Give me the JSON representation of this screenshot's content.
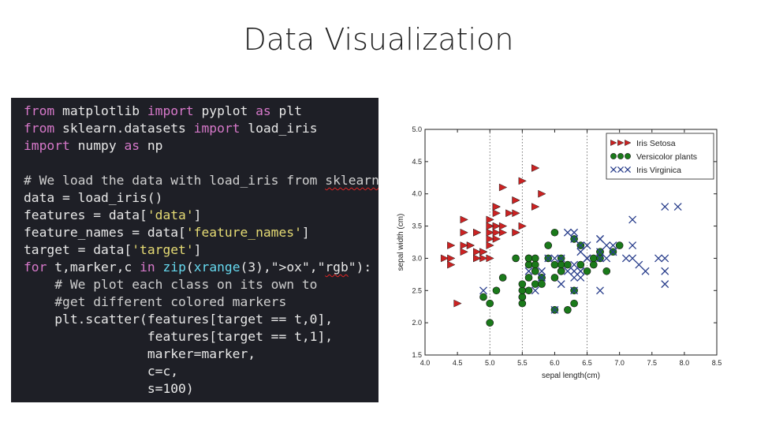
{
  "slide": {
    "title": "Data Visualization"
  },
  "code": {
    "lines": [
      [
        {
          "t": "from",
          "c": "kw"
        },
        {
          "t": " matplotlib "
        },
        {
          "t": "import",
          "c": "kw"
        },
        {
          "t": " pyplot "
        },
        {
          "t": "as",
          "c": "kw"
        },
        {
          "t": " plt"
        }
      ],
      [
        {
          "t": "from",
          "c": "kw"
        },
        {
          "t": " sklearn.datasets "
        },
        {
          "t": "import",
          "c": "kw"
        },
        {
          "t": " load_iris"
        }
      ],
      [
        {
          "t": "import",
          "c": "kw"
        },
        {
          "t": " numpy "
        },
        {
          "t": "as",
          "c": "kw"
        },
        {
          "t": " np"
        }
      ],
      [],
      [
        {
          "t": "# We load the data with load_iris from ",
          "c": "com"
        },
        {
          "t": "sklearn",
          "c": "com sq"
        }
      ],
      [
        {
          "t": "data = load_iris()"
        }
      ],
      [
        {
          "t": "features = data["
        },
        {
          "t": "'data'",
          "c": "str"
        },
        {
          "t": "]"
        }
      ],
      [
        {
          "t": "feature_names = data["
        },
        {
          "t": "'feature_names'",
          "c": "str"
        },
        {
          "t": "]"
        }
      ],
      [
        {
          "t": "target = data["
        },
        {
          "t": "'target'",
          "c": "str"
        },
        {
          "t": "]"
        }
      ],
      [
        {
          "t": "for",
          "c": "kw"
        },
        {
          "t": " t,marker,c "
        },
        {
          "t": "in",
          "c": "kw"
        },
        {
          "t": " "
        },
        {
          "t": "zip",
          "c": "fn"
        },
        {
          "t": "("
        },
        {
          "t": "xrange",
          "c": "fn"
        },
        {
          "t": "(3),\">ox\",\""
        },
        {
          "t": "rgb",
          "c": "sq"
        },
        {
          "t": "\"):"
        }
      ],
      [
        {
          "t": "    # We plot each class on its own to",
          "c": "com"
        }
      ],
      [
        {
          "t": "    #get different colored markers",
          "c": "com"
        }
      ],
      [
        {
          "t": "    plt.scatter(features[target == t,0],"
        }
      ],
      [
        {
          "t": "                features[target == t,1],"
        }
      ],
      [
        {
          "t": "                marker=marker,"
        }
      ],
      [
        {
          "t": "                c=c,"
        }
      ],
      [
        {
          "t": "                s=100)"
        }
      ]
    ]
  },
  "chart_data": {
    "type": "scatter",
    "xlabel": "sepal length(cm)",
    "ylabel": "sepal width (cm)",
    "xlim": [
      4.0,
      8.5
    ],
    "ylim": [
      1.5,
      5.0
    ],
    "xticks": [
      "4.0",
      "4.5",
      "5.0",
      "5.5",
      "6.0",
      "6.5",
      "7.0",
      "7.5",
      "8.0",
      "8.5"
    ],
    "yticks": [
      "1.5",
      "2.0",
      "2.5",
      "3.0",
      "3.5",
      "4.0",
      "4.5",
      "5.0"
    ],
    "grid": "vertical dotted",
    "legend_position": "top-right",
    "series": [
      {
        "name": "Iris Setosa",
        "marker": "triangle-right",
        "color": "#cc2222",
        "points": [
          [
            5.1,
            3.5
          ],
          [
            4.9,
            3.0
          ],
          [
            4.7,
            3.2
          ],
          [
            4.6,
            3.1
          ],
          [
            5.0,
            3.6
          ],
          [
            5.4,
            3.9
          ],
          [
            4.6,
            3.4
          ],
          [
            5.0,
            3.4
          ],
          [
            4.4,
            2.9
          ],
          [
            4.9,
            3.1
          ],
          [
            5.4,
            3.7
          ],
          [
            4.8,
            3.4
          ],
          [
            4.8,
            3.0
          ],
          [
            4.3,
            3.0
          ],
          [
            5.8,
            4.0
          ],
          [
            5.7,
            4.4
          ],
          [
            5.4,
            3.9
          ],
          [
            5.1,
            3.5
          ],
          [
            5.7,
            3.8
          ],
          [
            5.1,
            3.8
          ],
          [
            5.4,
            3.4
          ],
          [
            5.1,
            3.7
          ],
          [
            4.6,
            3.6
          ],
          [
            5.1,
            3.3
          ],
          [
            4.8,
            3.4
          ],
          [
            5.0,
            3.0
          ],
          [
            5.0,
            3.4
          ],
          [
            5.2,
            3.5
          ],
          [
            5.2,
            3.4
          ],
          [
            4.7,
            3.2
          ],
          [
            4.8,
            3.1
          ],
          [
            5.4,
            3.4
          ],
          [
            5.2,
            4.1
          ],
          [
            5.5,
            4.2
          ],
          [
            4.9,
            3.1
          ],
          [
            5.0,
            3.2
          ],
          [
            5.5,
            3.5
          ],
          [
            4.4,
            3.0
          ],
          [
            5.1,
            3.4
          ],
          [
            5.0,
            3.5
          ],
          [
            4.5,
            2.3
          ],
          [
            4.4,
            3.2
          ],
          [
            5.0,
            3.5
          ],
          [
            5.1,
            3.8
          ],
          [
            4.8,
            3.0
          ],
          [
            5.1,
            3.8
          ],
          [
            4.6,
            3.2
          ],
          [
            5.3,
            3.7
          ],
          [
            5.0,
            3.3
          ]
        ]
      },
      {
        "name": "Versicolor plants",
        "marker": "circle",
        "color": "#1a7a1a",
        "points": [
          [
            7.0,
            3.2
          ],
          [
            6.4,
            3.2
          ],
          [
            6.9,
            3.1
          ],
          [
            5.5,
            2.3
          ],
          [
            6.5,
            2.8
          ],
          [
            5.7,
            2.8
          ],
          [
            6.3,
            3.3
          ],
          [
            4.9,
            2.4
          ],
          [
            6.6,
            2.9
          ],
          [
            5.2,
            2.7
          ],
          [
            5.0,
            2.0
          ],
          [
            5.9,
            3.0
          ],
          [
            6.0,
            2.2
          ],
          [
            6.1,
            2.9
          ],
          [
            5.6,
            2.9
          ],
          [
            6.7,
            3.1
          ],
          [
            5.6,
            3.0
          ],
          [
            5.8,
            2.7
          ],
          [
            6.2,
            2.2
          ],
          [
            5.6,
            2.5
          ],
          [
            5.9,
            3.2
          ],
          [
            6.1,
            2.8
          ],
          [
            6.3,
            2.5
          ],
          [
            6.1,
            2.8
          ],
          [
            6.4,
            2.9
          ],
          [
            6.6,
            3.0
          ],
          [
            6.8,
            2.8
          ],
          [
            6.7,
            3.0
          ],
          [
            6.0,
            2.9
          ],
          [
            5.7,
            2.6
          ],
          [
            5.5,
            2.4
          ],
          [
            5.5,
            2.4
          ],
          [
            5.8,
            2.7
          ],
          [
            6.0,
            2.7
          ],
          [
            5.4,
            3.0
          ],
          [
            6.0,
            3.4
          ],
          [
            6.7,
            3.1
          ],
          [
            6.3,
            2.3
          ],
          [
            5.6,
            3.0
          ],
          [
            5.5,
            2.5
          ],
          [
            5.5,
            2.6
          ],
          [
            6.1,
            3.0
          ],
          [
            5.8,
            2.6
          ],
          [
            5.0,
            2.3
          ],
          [
            5.6,
            2.7
          ],
          [
            5.7,
            3.0
          ],
          [
            5.7,
            2.9
          ],
          [
            6.2,
            2.9
          ],
          [
            5.1,
            2.5
          ],
          [
            5.7,
            2.8
          ]
        ]
      },
      {
        "name": "Iris Virginica",
        "marker": "x",
        "color": "#2a3f8c",
        "points": [
          [
            6.3,
            3.3
          ],
          [
            5.8,
            2.7
          ],
          [
            7.1,
            3.0
          ],
          [
            6.3,
            2.9
          ],
          [
            6.5,
            3.0
          ],
          [
            7.6,
            3.0
          ],
          [
            4.9,
            2.5
          ],
          [
            7.3,
            2.9
          ],
          [
            6.7,
            2.5
          ],
          [
            7.2,
            3.6
          ],
          [
            6.5,
            3.2
          ],
          [
            6.4,
            2.7
          ],
          [
            6.8,
            3.0
          ],
          [
            5.7,
            2.5
          ],
          [
            5.8,
            2.8
          ],
          [
            6.4,
            3.2
          ],
          [
            6.5,
            3.0
          ],
          [
            7.7,
            3.8
          ],
          [
            7.7,
            2.6
          ],
          [
            6.0,
            2.2
          ],
          [
            6.9,
            3.2
          ],
          [
            5.6,
            2.8
          ],
          [
            7.7,
            2.8
          ],
          [
            6.3,
            2.7
          ],
          [
            6.7,
            3.3
          ],
          [
            7.2,
            3.2
          ],
          [
            6.2,
            2.8
          ],
          [
            6.1,
            3.0
          ],
          [
            6.4,
            2.8
          ],
          [
            7.2,
            3.0
          ],
          [
            7.4,
            2.8
          ],
          [
            7.9,
            3.8
          ],
          [
            6.4,
            2.8
          ],
          [
            6.3,
            2.8
          ],
          [
            6.1,
            2.6
          ],
          [
            7.7,
            3.0
          ],
          [
            6.3,
            3.4
          ],
          [
            6.4,
            3.1
          ],
          [
            6.0,
            3.0
          ],
          [
            6.9,
            3.1
          ],
          [
            6.7,
            3.1
          ],
          [
            6.9,
            3.1
          ],
          [
            5.8,
            2.7
          ],
          [
            6.8,
            3.2
          ],
          [
            6.7,
            3.3
          ],
          [
            6.7,
            3.0
          ],
          [
            6.3,
            2.5
          ],
          [
            6.5,
            3.0
          ],
          [
            6.2,
            3.4
          ],
          [
            5.9,
            3.0
          ]
        ]
      }
    ]
  }
}
